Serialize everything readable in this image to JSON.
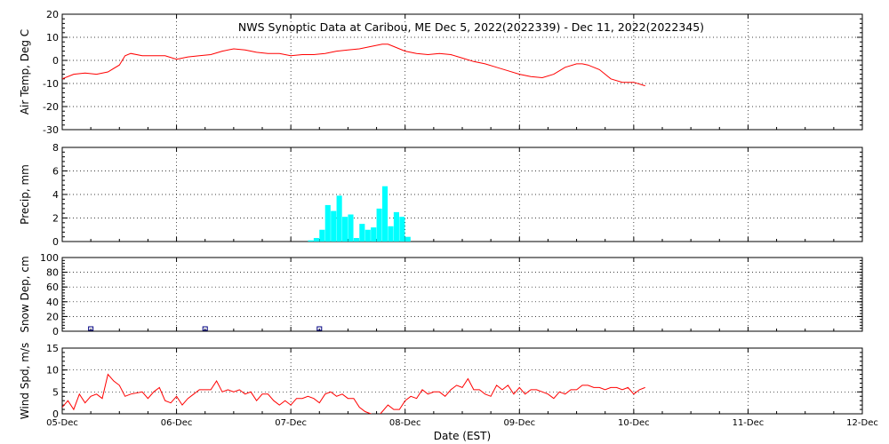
{
  "title": "NWS Synoptic Data at Caribou, ME   Dec  5, 2022(2022339) - Dec 11, 2022(2022345)",
  "x_axis": {
    "label": "Date (EST)",
    "ticks": [
      "05-Dec",
      "06-Dec",
      "07-Dec",
      "08-Dec",
      "09-Dec",
      "10-Dec",
      "11-Dec",
      "12-Dec"
    ]
  },
  "colors": {
    "air_temp": "#ff0000",
    "precip": "#00ffff",
    "snow_depth": "#000080",
    "wind_speed": "#ff0000",
    "grid": "#000000",
    "frame": "#000000"
  },
  "chart_data": [
    {
      "type": "line",
      "ylabel": "Air Temp, Deg C",
      "ylim": [
        -30,
        20
      ],
      "yticks": [
        "20",
        "10",
        "0",
        "-10",
        "-20",
        "-30"
      ],
      "xlim": [
        0,
        7
      ],
      "grid": true,
      "series": [
        {
          "x": [
            0,
            0.1,
            0.2,
            0.3,
            0.4,
            0.5,
            0.55,
            0.6,
            0.7,
            0.8,
            0.9,
            1.0,
            1.1,
            1.2,
            1.3,
            1.4,
            1.5,
            1.6,
            1.7,
            1.8,
            1.9,
            2.0,
            2.1,
            2.2,
            2.3,
            2.4,
            2.5,
            2.6,
            2.7,
            2.8,
            2.85,
            2.9,
            3.0,
            3.1,
            3.2,
            3.3,
            3.4,
            3.5,
            3.6,
            3.7,
            3.8,
            3.9,
            4.0,
            4.1,
            4.2,
            4.3,
            4.4,
            4.5,
            4.55,
            4.6,
            4.7,
            4.8,
            4.9,
            5.0,
            5.1
          ],
          "values": [
            -8,
            -6,
            -5.5,
            -6,
            -5,
            -2,
            2,
            3,
            2,
            2,
            2,
            0.5,
            1.5,
            2,
            2.5,
            4,
            5,
            4.5,
            3.5,
            3,
            3,
            2,
            2.5,
            2.5,
            3,
            4,
            4.5,
            5,
            6,
            7,
            7,
            6,
            4,
            3,
            2.5,
            3,
            2.5,
            1,
            -0.5,
            -1.5,
            -3,
            -4.5,
            -6,
            -7,
            -7.5,
            -6,
            -3,
            -1.5,
            -1.5,
            -2,
            -4,
            -8,
            -9.5,
            -9.5,
            -11
          ]
        }
      ]
    },
    {
      "type": "bar",
      "ylabel": "Precip, mm",
      "ylim": [
        0,
        8
      ],
      "yticks": [
        "8",
        "6",
        "4",
        "2",
        "0"
      ],
      "xlim": [
        0,
        7
      ],
      "grid": true,
      "series": [
        {
          "x": [
            2.15,
            2.2,
            2.25,
            2.3,
            2.35,
            2.4,
            2.45,
            2.5,
            2.55,
            2.6,
            2.65,
            2.7,
            2.75,
            2.8,
            2.85,
            2.9,
            2.95,
            3.0
          ],
          "values": [
            0.1,
            0.3,
            1.0,
            3.1,
            2.6,
            3.9,
            2.1,
            2.3,
            0.3,
            1.5,
            1.0,
            1.2,
            2.8,
            4.7,
            1.3,
            2.5,
            2.1,
            0.4
          ]
        }
      ]
    },
    {
      "type": "scatter",
      "ylabel": "Snow Dep, cm",
      "ylim": [
        0,
        100
      ],
      "yticks": [
        "100",
        "80",
        "60",
        "40",
        "20",
        "0"
      ],
      "xlim": [
        0,
        7
      ],
      "grid": true,
      "series": [
        {
          "x": [
            0.25,
            1.25,
            2.25
          ],
          "values": [
            0,
            0,
            0
          ]
        }
      ]
    },
    {
      "type": "line",
      "ylabel": "Wind Spd, m/s",
      "ylim": [
        0,
        15
      ],
      "yticks": [
        "15",
        "10",
        "5",
        "0"
      ],
      "xlim": [
        0,
        7
      ],
      "grid": true,
      "series": [
        {
          "x": [
            0,
            0.05,
            0.1,
            0.15,
            0.2,
            0.25,
            0.3,
            0.35,
            0.4,
            0.45,
            0.5,
            0.55,
            0.6,
            0.7,
            0.75,
            0.8,
            0.85,
            0.9,
            0.95,
            1.0,
            1.05,
            1.1,
            1.15,
            1.2,
            1.25,
            1.3,
            1.35,
            1.4,
            1.45,
            1.5,
            1.55,
            1.6,
            1.65,
            1.7,
            1.75,
            1.8,
            1.85,
            1.9,
            1.95,
            2.0,
            2.05,
            2.1,
            2.15,
            2.2,
            2.25,
            2.3,
            2.35,
            2.4,
            2.45,
            2.5,
            2.55,
            2.6,
            2.65,
            2.7,
            2.75,
            2.8,
            2.85,
            2.9,
            2.95,
            3.0,
            3.05,
            3.1,
            3.15,
            3.2,
            3.25,
            3.3,
            3.35,
            3.4,
            3.45,
            3.5,
            3.55,
            3.6,
            3.65,
            3.7,
            3.75,
            3.8,
            3.85,
            3.9,
            3.95,
            4.0,
            4.05,
            4.1,
            4.15,
            4.2,
            4.25,
            4.3,
            4.35,
            4.4,
            4.45,
            4.5,
            4.55,
            4.6,
            4.65,
            4.7,
            4.75,
            4.8,
            4.85,
            4.9,
            4.95,
            5.0,
            5.05,
            5.1
          ],
          "values": [
            1.5,
            3,
            1,
            4.5,
            2.5,
            4,
            4.5,
            3.5,
            9,
            7.5,
            6.5,
            4,
            4.5,
            5,
            3.5,
            5,
            6,
            3,
            2.5,
            4,
            2,
            3.5,
            4.5,
            5.5,
            5.5,
            5.5,
            7.5,
            5,
            5.5,
            5,
            5.5,
            4.5,
            5,
            3,
            4.5,
            4.5,
            3,
            2,
            3,
            2,
            3.5,
            3.5,
            4,
            3.5,
            2.5,
            4.5,
            5,
            4,
            4.5,
            3.5,
            3.5,
            1.5,
            0.5,
            0,
            -1,
            0.5,
            2,
            1,
            1,
            3,
            4,
            3.5,
            5.5,
            4.5,
            5,
            5,
            4,
            5.5,
            6.5,
            6,
            8,
            5.5,
            5.5,
            4.5,
            4,
            6.5,
            5.5,
            6.5,
            4.5,
            6,
            4.5,
            5.5,
            5.5,
            5,
            4.5,
            3.5,
            5,
            4.5,
            5.5,
            5.5,
            6.5,
            6.5,
            6,
            6,
            5.5,
            6,
            6,
            5.5,
            6,
            4.5,
            5.5,
            6
          ]
        }
      ]
    }
  ]
}
